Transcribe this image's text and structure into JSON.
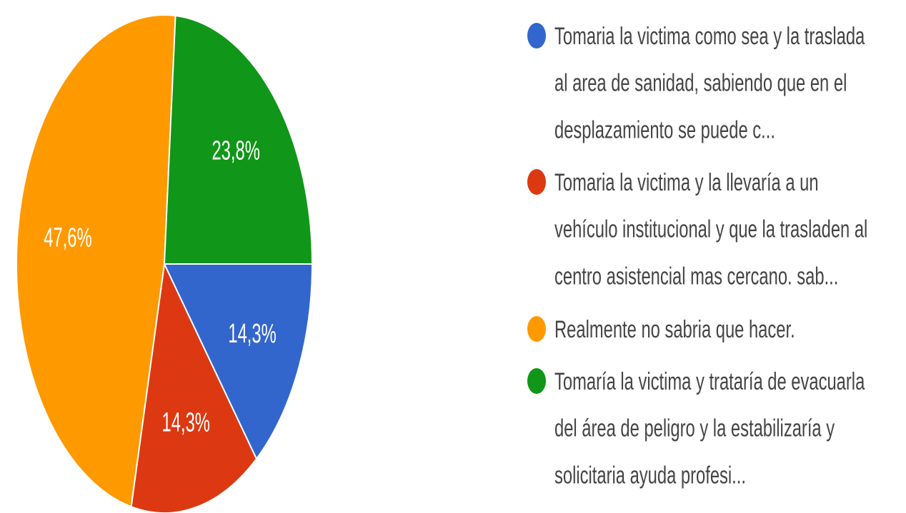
{
  "chart_data": {
    "type": "pie",
    "categories": [
      "Tomaria la victima como sea y la traslada al area de sanidad, sabiendo que en el desplazamiento se puede c...",
      "Tomaria la victima y la llevaría a un vehículo institucional y que la trasladen al centro asistencial mas cercano. sab...",
      "Realmente no sabria que hacer.",
      "Tomaría la victima y trataría de evacuarla del área de peligro y la estabilizaría y solicitaria ayuda profesi..."
    ],
    "values": [
      14.3,
      14.3,
      47.6,
      23.8
    ],
    "value_labels": [
      "14,3%",
      "14,3%",
      "47,6%",
      "23,8%"
    ],
    "colors": [
      "#3366cc",
      "#dc3912",
      "#ff9900",
      "#109618"
    ]
  }
}
